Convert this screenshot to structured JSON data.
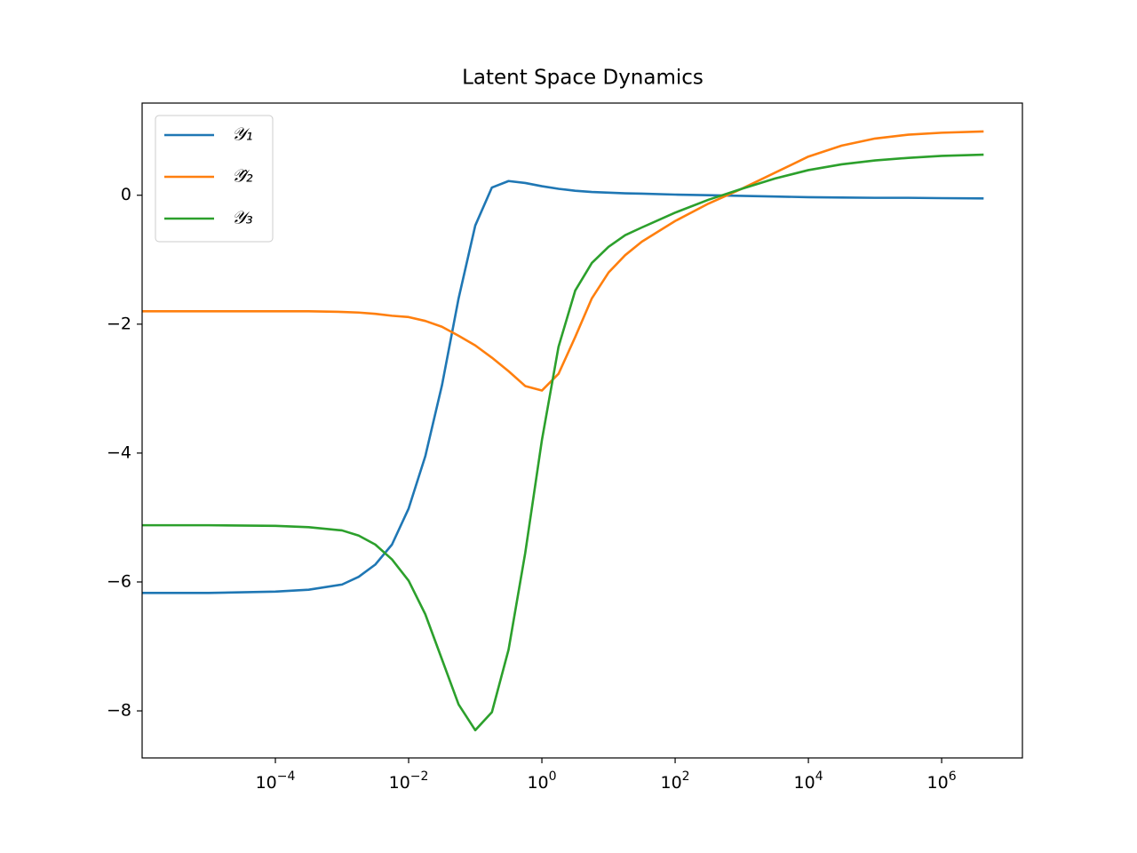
{
  "chart_data": {
    "type": "line",
    "title": "Latent Space Dynamics",
    "x": [
      1e-06,
      1e-05,
      0.0001,
      0.0003162,
      0.001,
      0.001778,
      0.003162,
      0.005623,
      0.01,
      0.01778,
      0.03162,
      0.05623,
      0.1,
      0.1778,
      0.3162,
      0.5623,
      1,
      1.778,
      3.162,
      5.623,
      10,
      17.78,
      31.62,
      100,
      316.2,
      1000,
      3162,
      10000,
      31620,
      100000,
      316200,
      1000000,
      4266000
    ],
    "series": [
      {
        "name": "𝒴₁",
        "color": "#1f77b4",
        "values": [
          -6.17,
          -6.17,
          -6.15,
          -6.12,
          -6.04,
          -5.92,
          -5.73,
          -5.42,
          -4.86,
          -4.05,
          -2.95,
          -1.6,
          -0.47,
          0.12,
          0.22,
          0.19,
          0.14,
          0.1,
          0.07,
          0.05,
          0.04,
          0.03,
          0.025,
          0.01,
          0.0,
          -0.01,
          -0.02,
          -0.03,
          -0.035,
          -0.04,
          -0.04,
          -0.045,
          -0.05
        ]
      },
      {
        "name": "𝒴̂₂",
        "color": "#ff7f0e",
        "values": [
          -1.8,
          -1.8,
          -1.8,
          -1.8,
          -1.81,
          -1.82,
          -1.84,
          -1.87,
          -1.89,
          -1.95,
          -2.04,
          -2.18,
          -2.33,
          -2.52,
          -2.73,
          -2.96,
          -3.03,
          -2.77,
          -2.2,
          -1.6,
          -1.2,
          -0.93,
          -0.72,
          -0.4,
          -0.13,
          0.1,
          0.35,
          0.6,
          0.77,
          0.88,
          0.94,
          0.97,
          0.99
        ]
      },
      {
        "name": "𝒴₃",
        "color": "#2ca02c",
        "values": [
          -5.12,
          -5.12,
          -5.13,
          -5.15,
          -5.2,
          -5.28,
          -5.42,
          -5.65,
          -5.98,
          -6.5,
          -7.2,
          -7.9,
          -8.3,
          -8.02,
          -7.05,
          -5.55,
          -3.8,
          -2.35,
          -1.48,
          -1.05,
          -0.8,
          -0.62,
          -0.5,
          -0.27,
          -0.07,
          0.1,
          0.26,
          0.39,
          0.48,
          0.54,
          0.58,
          0.61,
          0.63
        ]
      }
    ],
    "xscale": "log",
    "xlim": [
      1e-06,
      16300000.0
    ],
    "xticks": [
      {
        "value": 0.0001,
        "label": "10−4"
      },
      {
        "value": 0.01,
        "label": "10−2"
      },
      {
        "value": 1,
        "label": "100"
      },
      {
        "value": 100,
        "label": "102"
      },
      {
        "value": 10000,
        "label": "104"
      },
      {
        "value": 1000000,
        "label": "106"
      }
    ],
    "ylim": [
      -8.73,
      1.43
    ],
    "yticks": [
      {
        "value": -8,
        "label": "−8"
      },
      {
        "value": -6,
        "label": "−6"
      },
      {
        "value": -4,
        "label": "−4"
      },
      {
        "value": -2,
        "label": "−2"
      },
      0
    ],
    "legend": "upper left",
    "grid": false
  }
}
